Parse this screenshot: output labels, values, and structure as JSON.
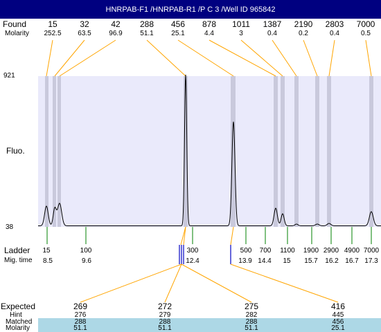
{
  "title": "HNRPAB-F1 /HNRPAB-R1 /P C 3 /Well ID 965842",
  "labels": {
    "found": "Found",
    "molarity": "Molarity",
    "fluo": "Fluo.",
    "y_max": "921",
    "y_min": "38",
    "ladder": "Ladder",
    "mig_time": "Mig. time",
    "expected": "Expected",
    "hint": "Hint",
    "matched": "Matched",
    "molarity_bottom": "Molarity"
  },
  "found_peaks": [
    {
      "size": "15",
      "molarity": "252.5"
    },
    {
      "size": "32",
      "molarity": "63.5"
    },
    {
      "size": "42",
      "molarity": "96.9"
    },
    {
      "size": "288",
      "molarity": "51.1"
    },
    {
      "size": "456",
      "molarity": "25.1"
    },
    {
      "size": "878",
      "molarity": "4.4"
    },
    {
      "size": "1011",
      "molarity": "3"
    },
    {
      "size": "1387",
      "molarity": "0.4"
    },
    {
      "size": "2190",
      "molarity": "0.2"
    },
    {
      "size": "2803",
      "molarity": "0.4"
    },
    {
      "size": "7000",
      "molarity": "0.5"
    }
  ],
  "ladder": [
    {
      "size": "15",
      "time": "8.5"
    },
    {
      "size": "100",
      "time": "9.6"
    },
    {
      "size": "300",
      "time": "12.4"
    },
    {
      "size": "500",
      "time": "13.9"
    },
    {
      "size": "700",
      "time": "14.4"
    },
    {
      "size": "1100",
      "time": "15"
    },
    {
      "size": "1900",
      "time": "15.7"
    },
    {
      "size": "2900",
      "time": "16.2"
    },
    {
      "size": "4900",
      "time": "16.7"
    },
    {
      "size": "7000",
      "time": "17.3"
    }
  ],
  "expected": [
    {
      "expected": "269",
      "hint": "276",
      "matched": "288",
      "molarity": "51.1"
    },
    {
      "expected": "272",
      "hint": "279",
      "matched": "288",
      "molarity": "51.1"
    },
    {
      "expected": "275",
      "hint": "282",
      "matched": "288",
      "molarity": "51.1"
    },
    {
      "expected": "416",
      "hint": "445",
      "matched": "456",
      "molarity": "25.1"
    }
  ],
  "colors": {
    "title_bg": "#000080",
    "plot_bg": "#eaeafb",
    "peak_band": "#c9c9dc",
    "found_line": "#ffa500",
    "ladder_line": "#008000",
    "marker_blue": "#0000c0",
    "matched_band": "#add8e6"
  }
}
